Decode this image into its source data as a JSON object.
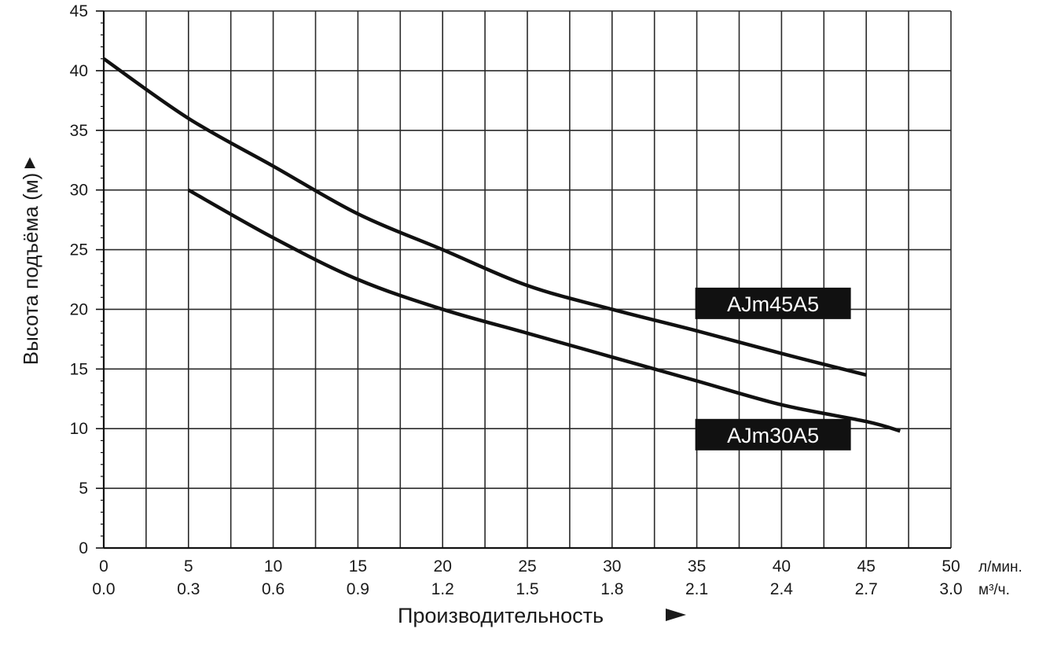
{
  "chart_data": {
    "type": "line",
    "title": "",
    "ylabel": "Высота подъёма (м)",
    "xlabel": "Производительность",
    "x_unit_primary": "л/мин.",
    "x_unit_secondary": "м³/ч.",
    "xlim": [
      0,
      50
    ],
    "ylim": [
      0,
      45
    ],
    "grid": true,
    "x_ticks_primary": [
      "0",
      "5",
      "10",
      "15",
      "20",
      "25",
      "30",
      "35",
      "40",
      "45",
      "50"
    ],
    "x_ticks_secondary": [
      "0.0",
      "0.3",
      "0.6",
      "0.9",
      "1.2",
      "1.5",
      "1.8",
      "2.1",
      "2.4",
      "2.7",
      "3.0"
    ],
    "y_ticks": [
      "0",
      "5",
      "10",
      "15",
      "20",
      "25",
      "30",
      "35",
      "40",
      "45"
    ],
    "series": [
      {
        "name": "AJm45A5",
        "color": "#111111",
        "x": [
          0,
          5,
          10,
          15,
          20,
          25,
          30,
          35,
          40,
          45
        ],
        "y": [
          41,
          36,
          32,
          28,
          25,
          22,
          20,
          18.2,
          16.3,
          14.5
        ]
      },
      {
        "name": "AJm30A5",
        "color": "#111111",
        "x": [
          5,
          10,
          15,
          20,
          25,
          30,
          35,
          40,
          45,
          47
        ],
        "y": [
          30,
          26,
          22.5,
          20,
          18,
          16,
          14,
          12,
          10.6,
          9.8
        ]
      }
    ]
  }
}
